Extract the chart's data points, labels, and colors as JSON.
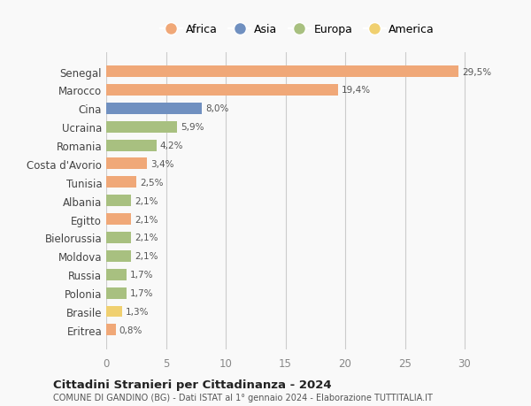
{
  "categories": [
    "Eritrea",
    "Brasile",
    "Polonia",
    "Russia",
    "Moldova",
    "Bielorussia",
    "Egitto",
    "Albania",
    "Tunisia",
    "Costa d'Avorio",
    "Romania",
    "Ucraina",
    "Cina",
    "Marocco",
    "Senegal"
  ],
  "values": [
    0.8,
    1.3,
    1.7,
    1.7,
    2.1,
    2.1,
    2.1,
    2.1,
    2.5,
    3.4,
    4.2,
    5.9,
    8.0,
    19.4,
    29.5
  ],
  "labels": [
    "0,8%",
    "1,3%",
    "1,7%",
    "1,7%",
    "2,1%",
    "2,1%",
    "2,1%",
    "2,1%",
    "2,5%",
    "3,4%",
    "4,2%",
    "5,9%",
    "8,0%",
    "19,4%",
    "29,5%"
  ],
  "continents": [
    "Africa",
    "America",
    "Europa",
    "Europa",
    "Europa",
    "Europa",
    "Africa",
    "Europa",
    "Africa",
    "Africa",
    "Europa",
    "Europa",
    "Asia",
    "Africa",
    "Africa"
  ],
  "colors": {
    "Africa": "#F0A878",
    "Asia": "#7090C0",
    "Europa": "#A8C080",
    "America": "#F0D070"
  },
  "legend_order": [
    "Africa",
    "Asia",
    "Europa",
    "America"
  ],
  "xlim": [
    0,
    32
  ],
  "xticks": [
    0,
    5,
    10,
    15,
    20,
    25,
    30
  ],
  "title": "Cittadini Stranieri per Cittadinanza - 2024",
  "subtitle": "COMUNE DI GANDINO (BG) - Dati ISTAT al 1° gennaio 2024 - Elaborazione TUTTITALIA.IT",
  "background_color": "#f9f9f9",
  "grid_color": "#cccccc",
  "bar_height": 0.62
}
